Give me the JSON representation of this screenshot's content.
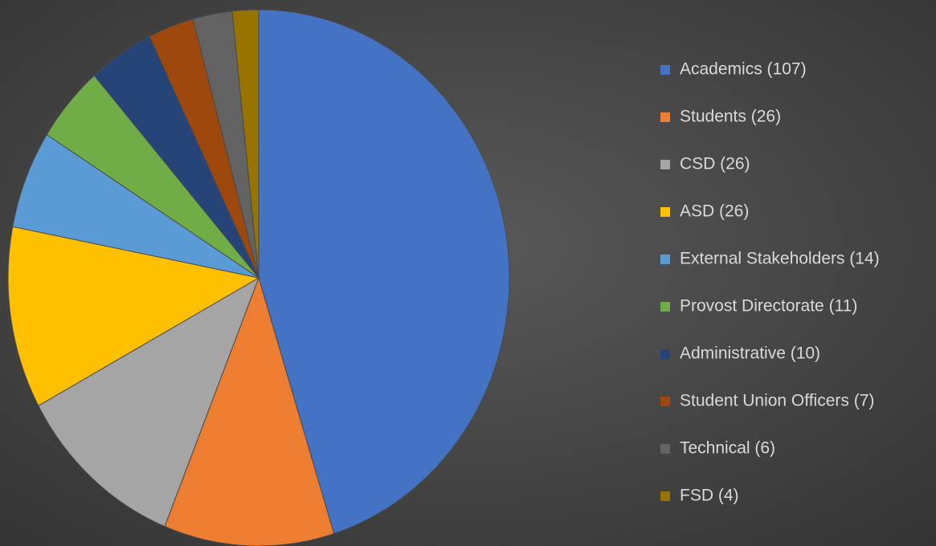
{
  "chart_data": {
    "type": "pie",
    "categories": [
      "Academics (107)",
      "Students (26)",
      "CSD (26)",
      "ASD (26)",
      "External Stakeholders (14)",
      "Provost Directorate (11)",
      "Administrative (10)",
      "Student Union Officers (7)",
      "Technical (6)",
      "FSD (4)"
    ],
    "values": [
      107,
      26,
      26,
      26,
      14,
      11,
      10,
      7,
      6,
      4
    ],
    "colors": [
      "#4472c4",
      "#ed7d31",
      "#a5a5a5",
      "#ffc000",
      "#5b9bd5",
      "#70ad47",
      "#264478",
      "#9e480e",
      "#636363",
      "#997300"
    ],
    "legend": "right"
  }
}
